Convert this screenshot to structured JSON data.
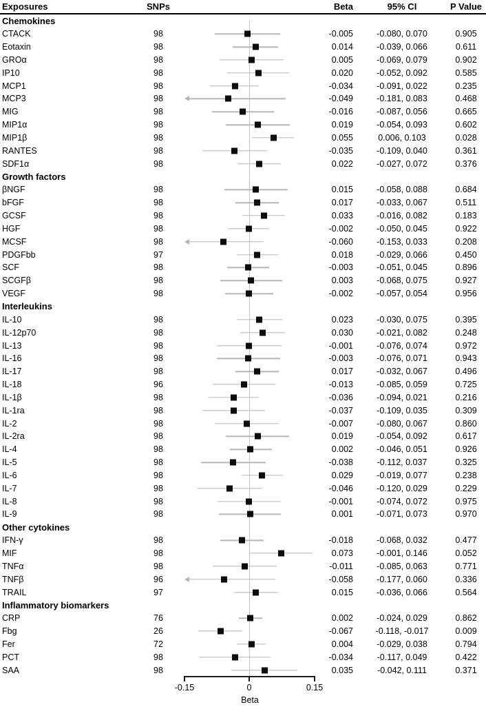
{
  "header": {
    "exposures": "Exposures",
    "snps": "SNPs",
    "beta": "Beta",
    "ci": "95% CI",
    "pvalue": "P Value"
  },
  "axis": {
    "label": "Beta",
    "ticks": [
      "-0.15",
      "0",
      "0.15"
    ],
    "tick_values": [
      -0.15,
      0,
      0.15
    ],
    "min": -0.15,
    "max": 0.15
  },
  "chart_data": {
    "type": "forest",
    "xlabel": "Beta",
    "xlim": [
      -0.15,
      0.15
    ],
    "marker": "black-square",
    "ci_color": "#b5b5b5",
    "groups": [
      {
        "label": "Chemokines",
        "rows": [
          {
            "exposure": "CTACK",
            "snps": "98",
            "beta": -0.005,
            "lo": -0.08,
            "hi": 0.07,
            "p": "0.905"
          },
          {
            "exposure": "Eotaxin",
            "snps": "98",
            "beta": 0.014,
            "lo": -0.039,
            "hi": 0.066,
            "p": "0.611"
          },
          {
            "exposure": "GROα",
            "snps": "98",
            "beta": 0.005,
            "lo": -0.069,
            "hi": 0.079,
            "p": "0.902"
          },
          {
            "exposure": "IP10",
            "snps": "98",
            "beta": 0.02,
            "lo": -0.052,
            "hi": 0.092,
            "p": "0.585"
          },
          {
            "exposure": "MCP1",
            "snps": "98",
            "beta": -0.034,
            "lo": -0.091,
            "hi": 0.022,
            "p": "0.235"
          },
          {
            "exposure": "MCP3",
            "snps": "98",
            "beta": -0.049,
            "lo": -0.181,
            "hi": 0.083,
            "p": "0.468"
          },
          {
            "exposure": "MIG",
            "snps": "98",
            "beta": -0.016,
            "lo": -0.087,
            "hi": 0.056,
            "p": "0.665"
          },
          {
            "exposure": "MIP1α",
            "snps": "98",
            "beta": 0.019,
            "lo": -0.054,
            "hi": 0.093,
            "p": "0.602"
          },
          {
            "exposure": "MIP1β",
            "snps": "98",
            "beta": 0.055,
            "lo": 0.006,
            "hi": 0.103,
            "p": "0.028"
          },
          {
            "exposure": "RANTES",
            "snps": "98",
            "beta": -0.035,
            "lo": -0.109,
            "hi": 0.04,
            "p": "0.361"
          },
          {
            "exposure": "SDF1α",
            "snps": "98",
            "beta": 0.022,
            "lo": -0.027,
            "hi": 0.072,
            "p": "0.376"
          }
        ]
      },
      {
        "label": "Growth factors",
        "rows": [
          {
            "exposure": "βNGF",
            "snps": "98",
            "beta": 0.015,
            "lo": -0.058,
            "hi": 0.088,
            "p": "0.684"
          },
          {
            "exposure": "bFGF",
            "snps": "98",
            "beta": 0.017,
            "lo": -0.033,
            "hi": 0.067,
            "p": "0.511"
          },
          {
            "exposure": "GCSF",
            "snps": "98",
            "beta": 0.033,
            "lo": -0.016,
            "hi": 0.082,
            "p": "0.183"
          },
          {
            "exposure": "HGF",
            "snps": "98",
            "beta": -0.002,
            "lo": -0.05,
            "hi": 0.045,
            "p": "0.922"
          },
          {
            "exposure": "MCSF",
            "snps": "98",
            "beta": -0.06,
            "lo": -0.153,
            "hi": 0.033,
            "p": "0.208"
          },
          {
            "exposure": "PDGFbb",
            "snps": "97",
            "beta": 0.018,
            "lo": -0.029,
            "hi": 0.066,
            "p": "0.450"
          },
          {
            "exposure": "SCF",
            "snps": "98",
            "beta": -0.003,
            "lo": -0.051,
            "hi": 0.045,
            "p": "0.896"
          },
          {
            "exposure": "SCGFβ",
            "snps": "98",
            "beta": 0.003,
            "lo": -0.068,
            "hi": 0.075,
            "p": "0.927"
          },
          {
            "exposure": "VEGF",
            "snps": "98",
            "beta": -0.002,
            "lo": -0.057,
            "hi": 0.054,
            "p": "0.956"
          }
        ]
      },
      {
        "label": "Interleukins",
        "rows": [
          {
            "exposure": "IL-10",
            "snps": "98",
            "beta": 0.023,
            "lo": -0.03,
            "hi": 0.075,
            "p": "0.395"
          },
          {
            "exposure": "IL-12p70",
            "snps": "98",
            "beta": 0.03,
            "lo": -0.021,
            "hi": 0.082,
            "p": "0.248"
          },
          {
            "exposure": "IL-13",
            "snps": "98",
            "beta": -0.001,
            "lo": -0.076,
            "hi": 0.074,
            "p": "0.972"
          },
          {
            "exposure": "IL-16",
            "snps": "98",
            "beta": -0.003,
            "lo": -0.076,
            "hi": 0.071,
            "p": "0.943"
          },
          {
            "exposure": "IL-17",
            "snps": "98",
            "beta": 0.017,
            "lo": -0.032,
            "hi": 0.067,
            "p": "0.496"
          },
          {
            "exposure": "IL-18",
            "snps": "96",
            "beta": -0.013,
            "lo": -0.085,
            "hi": 0.059,
            "p": "0.725"
          },
          {
            "exposure": "IL-1β",
            "snps": "98",
            "beta": -0.036,
            "lo": -0.094,
            "hi": 0.021,
            "p": "0.216"
          },
          {
            "exposure": "IL-1ra",
            "snps": "98",
            "beta": -0.037,
            "lo": -0.109,
            "hi": 0.035,
            "p": "0.309"
          },
          {
            "exposure": "IL-2",
            "snps": "98",
            "beta": -0.007,
            "lo": -0.08,
            "hi": 0.067,
            "p": "0.860"
          },
          {
            "exposure": "IL-2ra",
            "snps": "98",
            "beta": 0.019,
            "lo": -0.054,
            "hi": 0.092,
            "p": "0.617"
          },
          {
            "exposure": "IL-4",
            "snps": "98",
            "beta": 0.002,
            "lo": -0.046,
            "hi": 0.051,
            "p": "0.926"
          },
          {
            "exposure": "IL-5",
            "snps": "98",
            "beta": -0.038,
            "lo": -0.112,
            "hi": 0.037,
            "p": "0.325"
          },
          {
            "exposure": "IL-6",
            "snps": "98",
            "beta": 0.029,
            "lo": -0.019,
            "hi": 0.077,
            "p": "0.238"
          },
          {
            "exposure": "IL-7",
            "snps": "98",
            "beta": -0.046,
            "lo": -0.12,
            "hi": 0.029,
            "p": "0.229"
          },
          {
            "exposure": "IL-8",
            "snps": "98",
            "beta": -0.001,
            "lo": -0.074,
            "hi": 0.072,
            "p": "0.975"
          },
          {
            "exposure": "IL-9",
            "snps": "98",
            "beta": 0.001,
            "lo": -0.071,
            "hi": 0.073,
            "p": "0.970"
          }
        ]
      },
      {
        "label": "Other cytokines",
        "rows": [
          {
            "exposure": "IFN-γ",
            "snps": "98",
            "beta": -0.018,
            "lo": -0.068,
            "hi": 0.032,
            "p": "0.477"
          },
          {
            "exposure": "MIF",
            "snps": "98",
            "beta": 0.073,
            "lo": -0.001,
            "hi": 0.146,
            "p": "0.052"
          },
          {
            "exposure": "TNFα",
            "snps": "98",
            "beta": -0.011,
            "lo": -0.085,
            "hi": 0.063,
            "p": "0.771"
          },
          {
            "exposure": "TNFβ",
            "snps": "96",
            "beta": -0.058,
            "lo": -0.177,
            "hi": 0.06,
            "p": "0.336"
          },
          {
            "exposure": "TRAIL",
            "snps": "97",
            "beta": 0.015,
            "lo": -0.036,
            "hi": 0.066,
            "p": "0.564"
          }
        ]
      },
      {
        "label": "Inflammatory biomarkers",
        "rows": [
          {
            "exposure": "CRP",
            "snps": "76",
            "beta": 0.002,
            "lo": -0.024,
            "hi": 0.029,
            "p": "0.862"
          },
          {
            "exposure": "Fbg",
            "snps": "26",
            "beta": -0.067,
            "lo": -0.118,
            "hi": -0.017,
            "p": "0.009"
          },
          {
            "exposure": "Fer",
            "snps": "72",
            "beta": 0.004,
            "lo": -0.029,
            "hi": 0.038,
            "p": "0.794"
          },
          {
            "exposure": "PCT",
            "snps": "98",
            "beta": -0.034,
            "lo": -0.117,
            "hi": 0.049,
            "p": "0.422"
          },
          {
            "exposure": "SAA",
            "snps": "98",
            "beta": 0.035,
            "lo": -0.042,
            "hi": 0.111,
            "p": "0.371"
          }
        ]
      }
    ]
  }
}
